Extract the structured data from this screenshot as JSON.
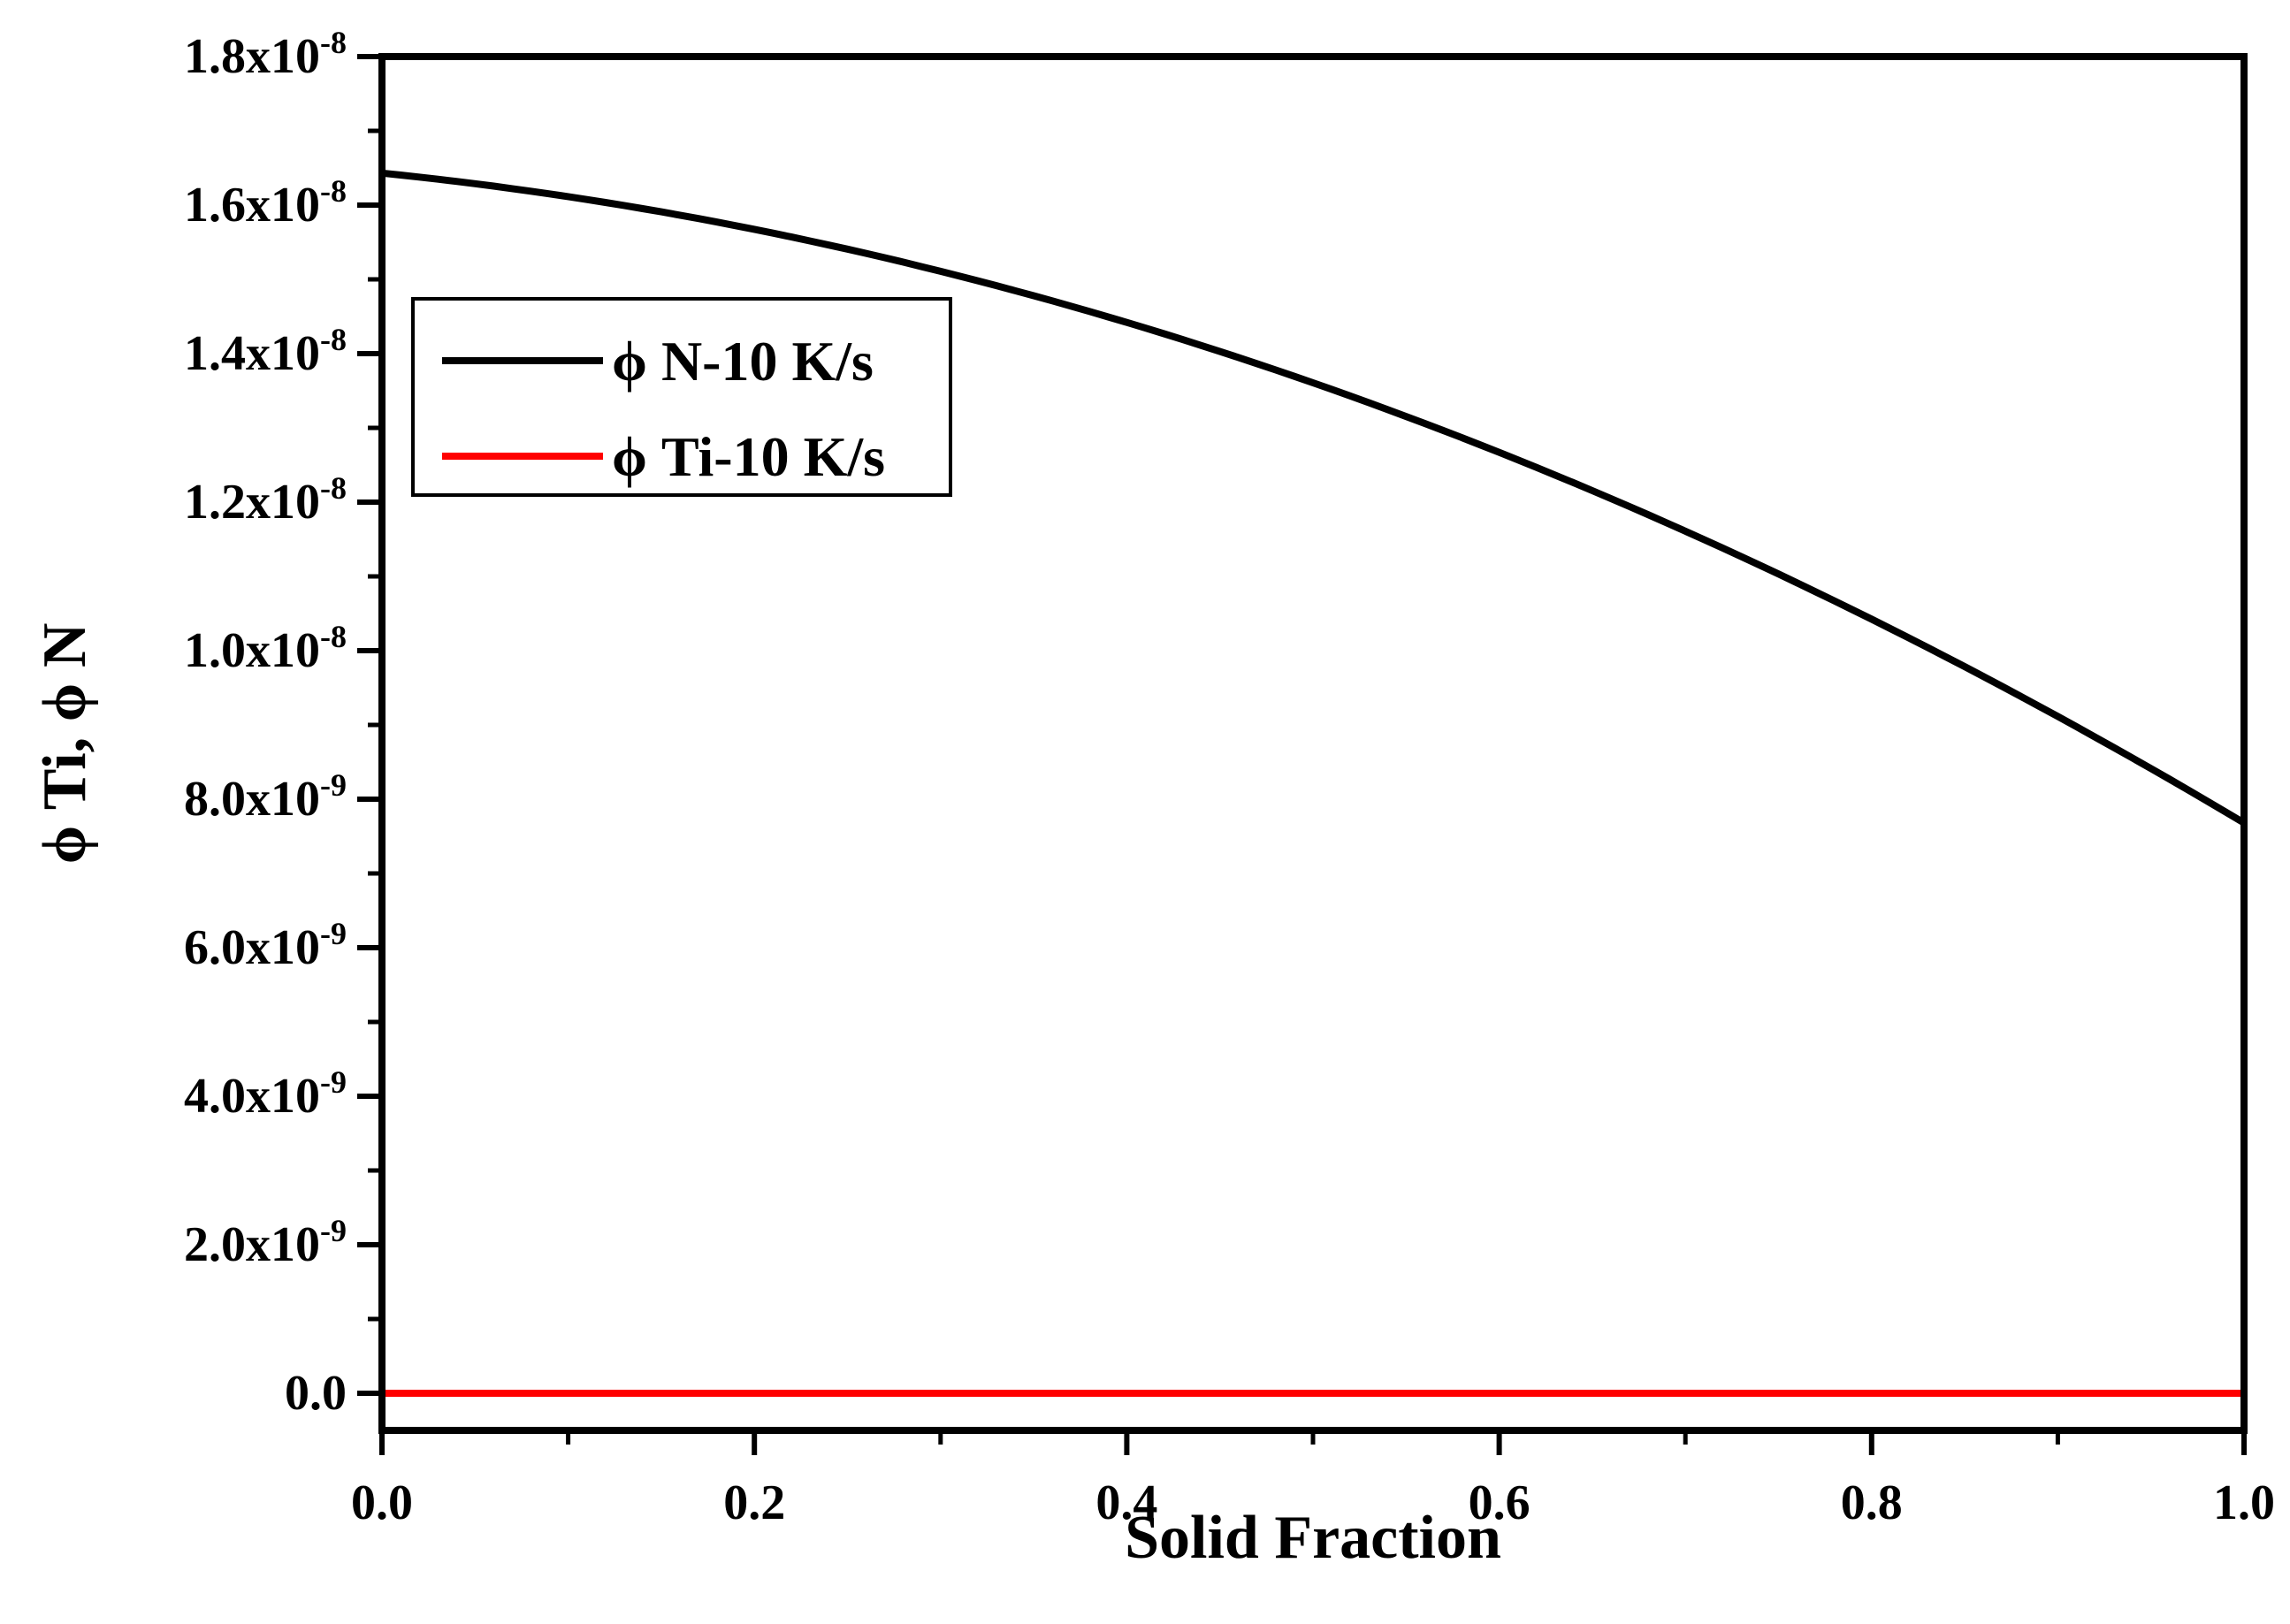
{
  "chart_data": {
    "type": "line",
    "title": "",
    "xlabel": "Solid Fraction",
    "ylabel": "ϕ Ti, ϕ N",
    "xlim": [
      0.0,
      1.0
    ],
    "ylim": [
      -5e-10,
      1.8e-08
    ],
    "grid": false,
    "legend_position": "top-left",
    "x_ticks": [
      0.0,
      0.2,
      0.4,
      0.6,
      0.8,
      1.0
    ],
    "x_tick_labels": [
      "0.0",
      "0.2",
      "0.4",
      "0.6",
      "0.8",
      "1.0"
    ],
    "y_ticks": [
      {
        "value": 0.0,
        "mantissa": "0.0",
        "exponent": ""
      },
      {
        "value": 2e-09,
        "mantissa": "2.0x10",
        "exponent": "-9"
      },
      {
        "value": 4e-09,
        "mantissa": "4.0x10",
        "exponent": "-9"
      },
      {
        "value": 6e-09,
        "mantissa": "6.0x10",
        "exponent": "-9"
      },
      {
        "value": 8e-09,
        "mantissa": "8.0x10",
        "exponent": "-9"
      },
      {
        "value": 1e-08,
        "mantissa": "1.0x10",
        "exponent": "-8"
      },
      {
        "value": 1.2e-08,
        "mantissa": "1.2x10",
        "exponent": "-8"
      },
      {
        "value": 1.4e-08,
        "mantissa": "1.4x10",
        "exponent": "-8"
      },
      {
        "value": 1.6e-08,
        "mantissa": "1.6x10",
        "exponent": "-8"
      },
      {
        "value": 1.8e-08,
        "mantissa": "1.8x10",
        "exponent": "-8"
      }
    ],
    "series": [
      {
        "name": "ϕ N-10 K/s",
        "color": "#000000",
        "x": [
          0.0,
          0.1,
          0.2,
          0.3,
          0.4,
          0.5,
          0.6,
          0.7,
          0.8,
          0.9,
          1.0
        ],
        "values": [
          1.655e-08,
          1.61e-08,
          1.56e-08,
          1.5e-08,
          1.435e-08,
          1.36e-08,
          1.27e-08,
          1.17e-08,
          1.055e-08,
          9.2e-09,
          7.5e-09
        ]
      },
      {
        "name": "ϕ Ti-10 K/s",
        "color": "#ff0000",
        "x": [
          0.0,
          0.1,
          0.2,
          0.3,
          0.4,
          0.5,
          0.6,
          0.7,
          0.8,
          0.9,
          1.0
        ],
        "values": [
          0.0,
          0.0,
          0.0,
          0.0,
          0.0,
          0.0,
          0.0,
          0.0,
          0.0,
          0.0,
          0.0
        ]
      }
    ]
  }
}
